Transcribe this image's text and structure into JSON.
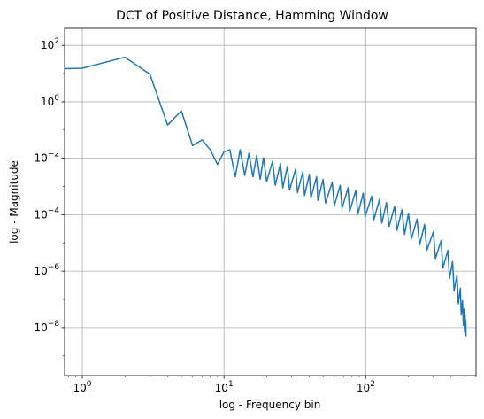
{
  "chart_data": {
    "type": "line",
    "title": "DCT of Positive Distance, Hamming Window",
    "xlabel": "log - Frequency bin",
    "ylabel": "log - Magnitude",
    "xscale": "log",
    "yscale": "log",
    "xlim": [
      0.75,
      600
    ],
    "ylim": [
      2e-10,
      400
    ],
    "grid": true,
    "legend": "none",
    "x_ticks": [
      {
        "value": 1,
        "base": "10",
        "exp": "0"
      },
      {
        "value": 10,
        "base": "10",
        "exp": "1"
      },
      {
        "value": 100,
        "base": "10",
        "exp": "2"
      }
    ],
    "y_ticks": [
      {
        "value": 1e-08,
        "base": "10",
        "exp": "−8"
      },
      {
        "value": 1e-06,
        "base": "10",
        "exp": "−6"
      },
      {
        "value": 0.0001,
        "base": "10",
        "exp": "−4"
      },
      {
        "value": 0.01,
        "base": "10",
        "exp": "−2"
      },
      {
        "value": 1,
        "base": "10",
        "exp": "0"
      },
      {
        "value": 100,
        "base": "10",
        "exp": "2"
      }
    ],
    "series": [
      {
        "color": "#1f77b4",
        "points": [
          [
            0.75,
            15
          ],
          [
            1,
            15.5
          ],
          [
            2,
            38
          ],
          [
            3,
            9.5
          ],
          [
            4,
            0.15
          ],
          [
            5,
            0.48
          ],
          [
            6,
            0.028
          ],
          [
            7,
            0.045
          ],
          [
            8,
            0.02
          ],
          [
            9,
            0.006
          ],
          [
            10,
            0.017
          ],
          [
            11,
            0.02
          ],
          [
            12,
            0.0022
          ],
          [
            13,
            0.02
          ],
          [
            14,
            0.0025
          ],
          [
            15,
            0.015
          ],
          [
            16,
            0.0022
          ],
          [
            17,
            0.0125
          ],
          [
            18,
            0.0018
          ],
          [
            19,
            0.0105
          ],
          [
            20,
            0.0015
          ],
          [
            22,
            0.0078
          ],
          [
            23,
            0.0011
          ],
          [
            25,
            0.0065
          ],
          [
            26,
            0.0009
          ],
          [
            28,
            0.0052
          ],
          [
            29,
            0.00075
          ],
          [
            32,
            0.0041
          ],
          [
            33,
            0.0006
          ],
          [
            36,
            0.0033
          ],
          [
            37,
            0.00048
          ],
          [
            40,
            0.0027
          ],
          [
            41,
            0.0004
          ],
          [
            45,
            0.0022
          ],
          [
            46,
            0.00032
          ],
          [
            50,
            0.0018
          ],
          [
            52,
            0.00026
          ],
          [
            58,
            0.0014
          ],
          [
            60,
            0.00021
          ],
          [
            66,
            0.0011
          ],
          [
            68,
            0.00017
          ],
          [
            75,
            0.0009
          ],
          [
            77,
            0.00013
          ],
          [
            85,
            0.00072
          ],
          [
            88,
            0.000105
          ],
          [
            96,
            0.00058
          ],
          [
            99,
            8.5e-05
          ],
          [
            110,
            0.00045
          ],
          [
            114,
            6.5e-05
          ],
          [
            125,
            0.00035
          ],
          [
            130,
            5e-05
          ],
          [
            140,
            0.00027
          ],
          [
            146,
            3.8e-05
          ],
          [
            160,
            0.0002
          ],
          [
            166,
            2.8e-05
          ],
          [
            180,
            0.00015
          ],
          [
            188,
            2e-05
          ],
          [
            200,
            0.00011
          ],
          [
            210,
            1.4e-05
          ],
          [
            230,
            7e-05
          ],
          [
            240,
            8.5e-06
          ],
          [
            260,
            4.5e-05
          ],
          [
            270,
            5.5e-06
          ],
          [
            300,
            2.5e-05
          ],
          [
            310,
            2.8e-06
          ],
          [
            340,
            1.2e-05
          ],
          [
            350,
            1.3e-06
          ],
          [
            380,
            5.5e-06
          ],
          [
            390,
            5.5e-07
          ],
          [
            410,
            2.2e-06
          ],
          [
            420,
            2e-07
          ],
          [
            440,
            7e-07
          ],
          [
            450,
            7e-08
          ],
          [
            465,
            2.5e-07
          ],
          [
            472,
            2.8e-08
          ],
          [
            482,
            9e-08
          ],
          [
            488,
            1.2e-08
          ],
          [
            494,
            4.5e-08
          ],
          [
            498,
            7e-09
          ],
          [
            502,
            2.8e-08
          ],
          [
            505,
            5.5e-09
          ],
          [
            508,
            1.8e-08
          ],
          [
            510,
            5e-09
          ]
        ]
      }
    ]
  }
}
